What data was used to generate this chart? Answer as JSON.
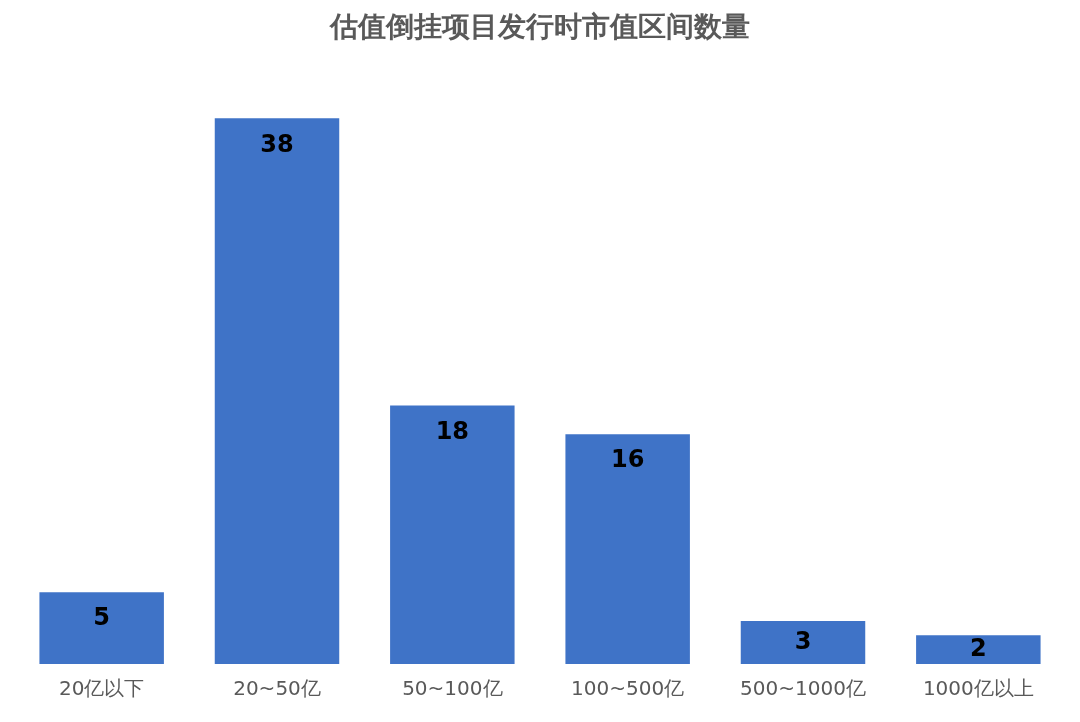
{
  "chart_data": {
    "type": "bar",
    "title": "估值倒挂项目发行时市值区间数量",
    "categories": [
      "20亿以下",
      "20~50亿",
      "50~100亿",
      "100~500亿",
      "500~1000亿",
      "1000亿以上"
    ],
    "values": [
      5,
      38,
      18,
      16,
      3,
      2
    ],
    "color": "#3f73c7",
    "data_labels": true,
    "legend": false,
    "grid": false
  }
}
